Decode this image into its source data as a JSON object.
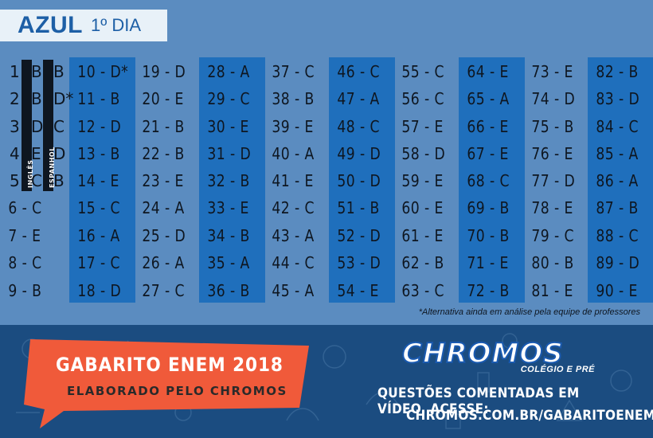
{
  "header": {
    "color_label": "AZUL",
    "day_label": "1º DIA"
  },
  "languages": {
    "english": "INGLÊS",
    "spanish": "ESPANHOL"
  },
  "first_column": [
    {
      "n": "1",
      "en": "B",
      "es": "B"
    },
    {
      "n": "2",
      "en": "B",
      "es": "D*"
    },
    {
      "n": "3",
      "en": "D",
      "es": "C"
    },
    {
      "n": "4",
      "en": "E",
      "es": "D"
    },
    {
      "n": "5",
      "en": "C",
      "es": "B"
    }
  ],
  "answers": [
    [
      "",
      "",
      "",
      "",
      "",
      "6 - C",
      "7 - E",
      "8 - C",
      "9 - B"
    ],
    [
      "10 - D*",
      "11 - B",
      "12 - D",
      "13 - B",
      "14 - E",
      "15 - C",
      "16 - A",
      "17 - C",
      "18 - D"
    ],
    [
      "19 - D",
      "20 - E",
      "21 - B",
      "22 - B",
      "23 - E",
      "24 - A",
      "25 - D",
      "26 - A",
      "27 - C"
    ],
    [
      "28 - A",
      "29 - C",
      "30 - E",
      "31 - D",
      "32 - B",
      "33 - E",
      "34 - B",
      "35 - A",
      "36 - B"
    ],
    [
      "37 - C",
      "38 - B",
      "39 - E",
      "40 - A",
      "41 - E",
      "42 - C",
      "43 - A",
      "44 - C",
      "45 - A"
    ],
    [
      "46 - C",
      "47 - A",
      "48 - C",
      "49 - D",
      "50 - D",
      "51 - B",
      "52 - D",
      "53 - D",
      "54 - E"
    ],
    [
      "55 - C",
      "56 - C",
      "57 - E",
      "58 - D",
      "59 - E",
      "60 - E",
      "61 - E",
      "62 - B",
      "63 - C"
    ],
    [
      "64 - E",
      "65 - A",
      "66 - E",
      "67 - E",
      "68 - C",
      "69 - B",
      "70 - B",
      "71 - E",
      "72 - B"
    ],
    [
      "73 - E",
      "74 - D",
      "75 - B",
      "76 - E",
      "77 - D",
      "78 - E",
      "79 - C",
      "80 - B",
      "81 - E"
    ],
    [
      "82 - B",
      "83 - D",
      "84 - C",
      "85 - A",
      "86 - A",
      "87 - B",
      "88 - C",
      "89 - D",
      "90 - E"
    ]
  ],
  "footnote": "*Alternativa ainda em análise pela equipe de professores",
  "banner": {
    "title": "GABARITO ENEM 2018",
    "subtitle": "ELABORADO PELO CHROMOS"
  },
  "logo": {
    "name": "CHROMOS",
    "tagline": "COLÉGIO E PRÉ"
  },
  "cta": {
    "line1": "QUESTÕES COMENTADAS EM VÍDEO, ACESSE:",
    "line2": "CHROMOS.COM.BR/GABARITOENEM"
  },
  "colors": {
    "top_bg": "#5b8cc0",
    "dark_col": "#1f6fbc",
    "bottom_bg": "#1b4c80",
    "banner": "#f05a3a"
  }
}
